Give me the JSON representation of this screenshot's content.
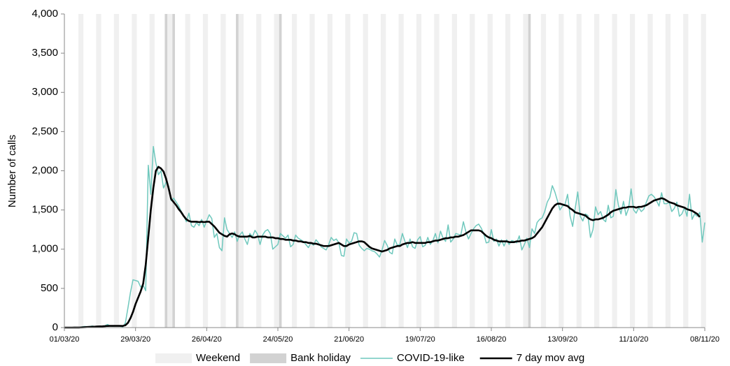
{
  "chart_data": {
    "type": "line",
    "y_label": "Number  of calls",
    "ylim": [
      0,
      4000
    ],
    "yticks": [
      0,
      500,
      {
        "value": 1000,
        "label": "1,000"
      },
      {
        "value": 1500,
        "label": "1,500"
      },
      {
        "value": 2000,
        "label": "2,000"
      },
      {
        "value": 2500,
        "label": "2,500"
      },
      {
        "value": 3000,
        "label": "3,000"
      },
      {
        "value": 3500,
        "label": "3,500"
      },
      {
        "value": 4000,
        "label": "4,000"
      }
    ],
    "xlim": [
      "01/03/20",
      "08/11/20"
    ],
    "xticks": [
      "01/03/20",
      "29/03/20",
      "26/04/20",
      "24/05/20",
      "21/06/20",
      "19/07/20",
      "16/08/20",
      "13/09/20",
      "11/10/20",
      "08/11/20"
    ],
    "shading": [
      {
        "name": "Weekend",
        "color": "#f0f0f0",
        "dates": [
          "07/03/20",
          "14/03/20",
          "21/03/20",
          "28/03/20",
          "04/04/20",
          "11/04/20",
          "18/04/20",
          "25/04/20",
          "02/05/20",
          "09/05/20",
          "16/05/20",
          "23/05/20",
          "30/05/20",
          "06/06/20",
          "13/06/20",
          "20/06/20",
          "27/06/20",
          "04/07/20",
          "11/07/20",
          "18/07/20",
          "25/07/20",
          "01/08/20",
          "08/08/20",
          "15/08/20",
          "22/08/20",
          "29/08/20",
          "05/09/20",
          "12/09/20",
          "19/09/20",
          "26/09/20",
          "03/10/20",
          "10/10/20",
          "17/10/20",
          "24/10/20",
          "31/10/20",
          "07/11/20"
        ],
        "days": 2
      },
      {
        "name": "Bank holiday",
        "color": "#d2d2d2",
        "dates": [
          "10/04/20",
          "13/04/20",
          "08/05/20",
          "25/05/20",
          "31/08/20"
        ],
        "days": 1
      }
    ],
    "x": [
      "01/03/20",
      "02/03/20",
      "03/03/20",
      "04/03/20",
      "05/03/20",
      "06/03/20",
      "07/03/20",
      "08/03/20",
      "09/03/20",
      "10/03/20",
      "11/03/20",
      "12/03/20",
      "13/03/20",
      "14/03/20",
      "15/03/20",
      "16/03/20",
      "17/03/20",
      "18/03/20",
      "19/03/20",
      "20/03/20",
      "21/03/20",
      "22/03/20",
      "23/03/20",
      "24/03/20",
      "25/03/20",
      "26/03/20",
      "27/03/20",
      "28/03/20",
      "29/03/20",
      "30/03/20",
      "31/03/20",
      "01/04/20",
      "02/04/20",
      "03/04/20",
      "04/04/20",
      "05/04/20",
      "06/04/20",
      "07/04/20",
      "08/04/20",
      "09/04/20",
      "10/04/20",
      "11/04/20",
      "12/04/20",
      "13/04/20",
      "14/04/20",
      "15/04/20",
      "16/04/20",
      "17/04/20",
      "18/04/20",
      "19/04/20",
      "20/04/20",
      "21/04/20",
      "22/04/20",
      "23/04/20",
      "24/04/20",
      "25/04/20",
      "26/04/20",
      "27/04/20",
      "28/04/20",
      "29/04/20",
      "30/04/20",
      "01/05/20",
      "02/05/20",
      "03/05/20",
      "04/05/20",
      "05/05/20",
      "06/05/20",
      "07/05/20",
      "08/05/20",
      "09/05/20",
      "10/05/20",
      "11/05/20",
      "12/05/20",
      "13/05/20",
      "14/05/20",
      "15/05/20",
      "16/05/20",
      "17/05/20",
      "18/05/20",
      "19/05/20",
      "20/05/20",
      "21/05/20",
      "22/05/20",
      "23/05/20",
      "24/05/20",
      "25/05/20",
      "26/05/20",
      "27/05/20",
      "28/05/20",
      "29/05/20",
      "30/05/20",
      "31/05/20",
      "01/06/20",
      "02/06/20",
      "03/06/20",
      "04/06/20",
      "05/06/20",
      "06/06/20",
      "07/06/20",
      "08/06/20",
      "09/06/20",
      "10/06/20",
      "11/06/20",
      "12/06/20",
      "13/06/20",
      "14/06/20",
      "15/06/20",
      "16/06/20",
      "17/06/20",
      "18/06/20",
      "19/06/20",
      "20/06/20",
      "21/06/20",
      "22/06/20",
      "23/06/20",
      "24/06/20",
      "25/06/20",
      "26/06/20",
      "27/06/20",
      "28/06/20",
      "29/06/20",
      "30/06/20",
      "01/07/20",
      "02/07/20",
      "03/07/20",
      "04/07/20",
      "05/07/20",
      "06/07/20",
      "07/07/20",
      "08/07/20",
      "09/07/20",
      "10/07/20",
      "11/07/20",
      "12/07/20",
      "13/07/20",
      "14/07/20",
      "15/07/20",
      "16/07/20",
      "17/07/20",
      "18/07/20",
      "19/07/20",
      "20/07/20",
      "21/07/20",
      "22/07/20",
      "23/07/20",
      "24/07/20",
      "25/07/20",
      "26/07/20",
      "27/07/20",
      "28/07/20",
      "29/07/20",
      "30/07/20",
      "31/07/20",
      "01/08/20",
      "02/08/20",
      "03/08/20",
      "04/08/20",
      "05/08/20",
      "06/08/20",
      "07/08/20",
      "08/08/20",
      "09/08/20",
      "10/08/20",
      "11/08/20",
      "12/08/20",
      "13/08/20",
      "14/08/20",
      "15/08/20",
      "16/08/20",
      "17/08/20",
      "18/08/20",
      "19/08/20",
      "20/08/20",
      "21/08/20",
      "22/08/20",
      "23/08/20",
      "24/08/20",
      "25/08/20",
      "26/08/20",
      "27/08/20",
      "28/08/20",
      "29/08/20",
      "30/08/20",
      "31/08/20",
      "01/09/20",
      "02/09/20",
      "03/09/20",
      "04/09/20",
      "05/09/20",
      "06/09/20",
      "07/09/20",
      "08/09/20",
      "09/09/20",
      "10/09/20",
      "11/09/20",
      "12/09/20",
      "13/09/20",
      "14/09/20",
      "15/09/20",
      "16/09/20",
      "17/09/20",
      "18/09/20",
      "19/09/20",
      "20/09/20",
      "21/09/20",
      "22/09/20",
      "23/09/20",
      "24/09/20",
      "25/09/20",
      "26/09/20",
      "27/09/20",
      "28/09/20",
      "29/09/20",
      "30/09/20",
      "01/10/20",
      "02/10/20",
      "03/10/20",
      "04/10/20",
      "05/10/20",
      "06/10/20",
      "07/10/20",
      "08/10/20",
      "09/10/20",
      "10/10/20",
      "11/10/20",
      "12/10/20",
      "13/10/20",
      "14/10/20",
      "15/10/20",
      "16/10/20",
      "17/10/20",
      "18/10/20",
      "19/10/20",
      "20/10/20",
      "21/10/20",
      "22/10/20",
      "23/10/20",
      "24/10/20",
      "25/10/20",
      "26/10/20",
      "27/10/20",
      "28/10/20",
      "29/10/20",
      "30/10/20",
      "31/10/20",
      "01/11/20",
      "02/11/20",
      "03/11/20",
      "04/11/20",
      "05/11/20",
      "06/11/20",
      "07/11/20",
      "08/11/20"
    ],
    "series": [
      {
        "name": "COVID-19-like",
        "color": "#6fc8bd",
        "width": 1.5,
        "values": [
          0,
          0,
          0,
          0,
          5,
          0,
          0,
          10,
          15,
          10,
          15,
          20,
          15,
          10,
          20,
          15,
          25,
          40,
          20,
          15,
          20,
          20,
          15,
          10,
          60,
          250,
          450,
          610,
          600,
          590,
          520,
          540,
          470,
          2070,
          1700,
          2310,
          2100,
          1950,
          2000,
          1780,
          1850,
          1800,
          1620,
          1650,
          1600,
          1550,
          1480,
          1420,
          1350,
          1460,
          1300,
          1280,
          1340,
          1300,
          1380,
          1280,
          1360,
          1440,
          1390,
          1150,
          1200,
          1020,
          980,
          1400,
          1250,
          1200,
          1150,
          1220,
          1100,
          1180,
          1220,
          1130,
          1060,
          1200,
          1160,
          1240,
          1190,
          1060,
          1180,
          1230,
          1250,
          1200,
          1000,
          1030,
          1060,
          1200,
          1170,
          1140,
          1180,
          1030,
          1060,
          1180,
          1140,
          1120,
          1100,
          1060,
          1020,
          1080,
          1050,
          1120,
          1080,
          1030,
          1010,
          990,
          1060,
          1150,
          1110,
          1130,
          1080,
          920,
          910,
          1130,
          1080,
          1100,
          1210,
          1200,
          1050,
          1010,
          980,
          1010,
          1000,
          980,
          970,
          940,
          900,
          990,
          1110,
          1050,
          960,
          940,
          1130,
          1050,
          1060,
          1200,
          1100,
          1020,
          1130,
          1030,
          1010,
          1120,
          1160,
          1030,
          1050,
          1150,
          1060,
          1110,
          1200,
          1080,
          1230,
          1140,
          1100,
          1310,
          1090,
          1130,
          1200,
          1190,
          1180,
          1350,
          1220,
          1130,
          1200,
          1260,
          1300,
          1320,
          1270,
          1200,
          1080,
          1090,
          1250,
          1100,
          1130,
          1040,
          1120,
          1040,
          1120,
          1060,
          1110,
          1100,
          1080,
          1170,
          990,
          1060,
          1140,
          1020,
          1260,
          1200,
          1340,
          1380,
          1400,
          1480,
          1600,
          1660,
          1810,
          1730,
          1620,
          1500,
          1550,
          1570,
          1700,
          1420,
          1290,
          1520,
          1730,
          1420,
          1360,
          1450,
          1430,
          1150,
          1250,
          1540,
          1440,
          1480,
          1380,
          1350,
          1560,
          1400,
          1420,
          1760,
          1560,
          1450,
          1610,
          1430,
          1520,
          1770,
          1500,
          1460,
          1530,
          1480,
          1510,
          1600,
          1680,
          1700,
          1670,
          1620,
          1550,
          1720,
          1580,
          1580,
          1600,
          1480,
          1520,
          1600,
          1420,
          1450,
          1530,
          1420,
          1700,
          1380,
          1450,
          1420,
          1470,
          1090,
          1340
        ]
      },
      {
        "name": "7 day mov avg",
        "color": "#000000",
        "width": 2.6,
        "values": [
          0,
          0,
          0,
          0,
          1,
          1,
          1,
          3,
          5,
          7,
          9,
          11,
          12,
          14,
          15,
          16,
          18,
          21,
          22,
          22,
          22,
          22,
          22,
          21,
          30,
          60,
          120,
          200,
          300,
          380,
          460,
          560,
          800,
          1150,
          1500,
          1780,
          2000,
          2050,
          2030,
          1990,
          1900,
          1780,
          1640,
          1600,
          1560,
          1510,
          1470,
          1420,
          1380,
          1360,
          1350,
          1350,
          1350,
          1345,
          1350,
          1345,
          1350,
          1350,
          1320,
          1290,
          1250,
          1210,
          1190,
          1170,
          1160,
          1190,
          1200,
          1190,
          1170,
          1160,
          1160,
          1160,
          1160,
          1170,
          1150,
          1150,
          1160,
          1160,
          1160,
          1160,
          1150,
          1150,
          1150,
          1140,
          1140,
          1130,
          1130,
          1120,
          1120,
          1120,
          1110,
          1110,
          1100,
          1100,
          1090,
          1090,
          1080,
          1080,
          1070,
          1070,
          1060,
          1050,
          1040,
          1040,
          1040,
          1050,
          1060,
          1070,
          1080,
          1060,
          1040,
          1040,
          1060,
          1070,
          1080,
          1090,
          1100,
          1100,
          1090,
          1060,
          1030,
          1010,
          1000,
          990,
          980,
          970,
          980,
          990,
          1010,
          1020,
          1030,
          1040,
          1040,
          1060,
          1070,
          1080,
          1080,
          1090,
          1080,
          1080,
          1080,
          1080,
          1080,
          1090,
          1090,
          1100,
          1110,
          1110,
          1120,
          1130,
          1140,
          1140,
          1150,
          1150,
          1160,
          1160,
          1170,
          1180,
          1200,
          1220,
          1240,
          1240,
          1240,
          1240,
          1230,
          1200,
          1170,
          1150,
          1140,
          1120,
          1110,
          1100,
          1100,
          1100,
          1100,
          1090,
          1090,
          1090,
          1100,
          1100,
          1110,
          1110,
          1120,
          1130,
          1140,
          1160,
          1200,
          1240,
          1280,
          1340,
          1400,
          1460,
          1520,
          1560,
          1580,
          1580,
          1570,
          1560,
          1550,
          1520,
          1500,
          1470,
          1460,
          1450,
          1440,
          1430,
          1400,
          1380,
          1370,
          1380,
          1380,
          1390,
          1400,
          1420,
          1440,
          1470,
          1490,
          1500,
          1510,
          1520,
          1530,
          1530,
          1540,
          1540,
          1540,
          1530,
          1540,
          1540,
          1550,
          1560,
          1580,
          1600,
          1620,
          1630,
          1640,
          1650,
          1640,
          1620,
          1600,
          1590,
          1580,
          1560,
          1550,
          1540,
          1530,
          1510,
          1500,
          1490,
          1470,
          1450,
          1410,
          null,
          null
        ]
      }
    ]
  }
}
